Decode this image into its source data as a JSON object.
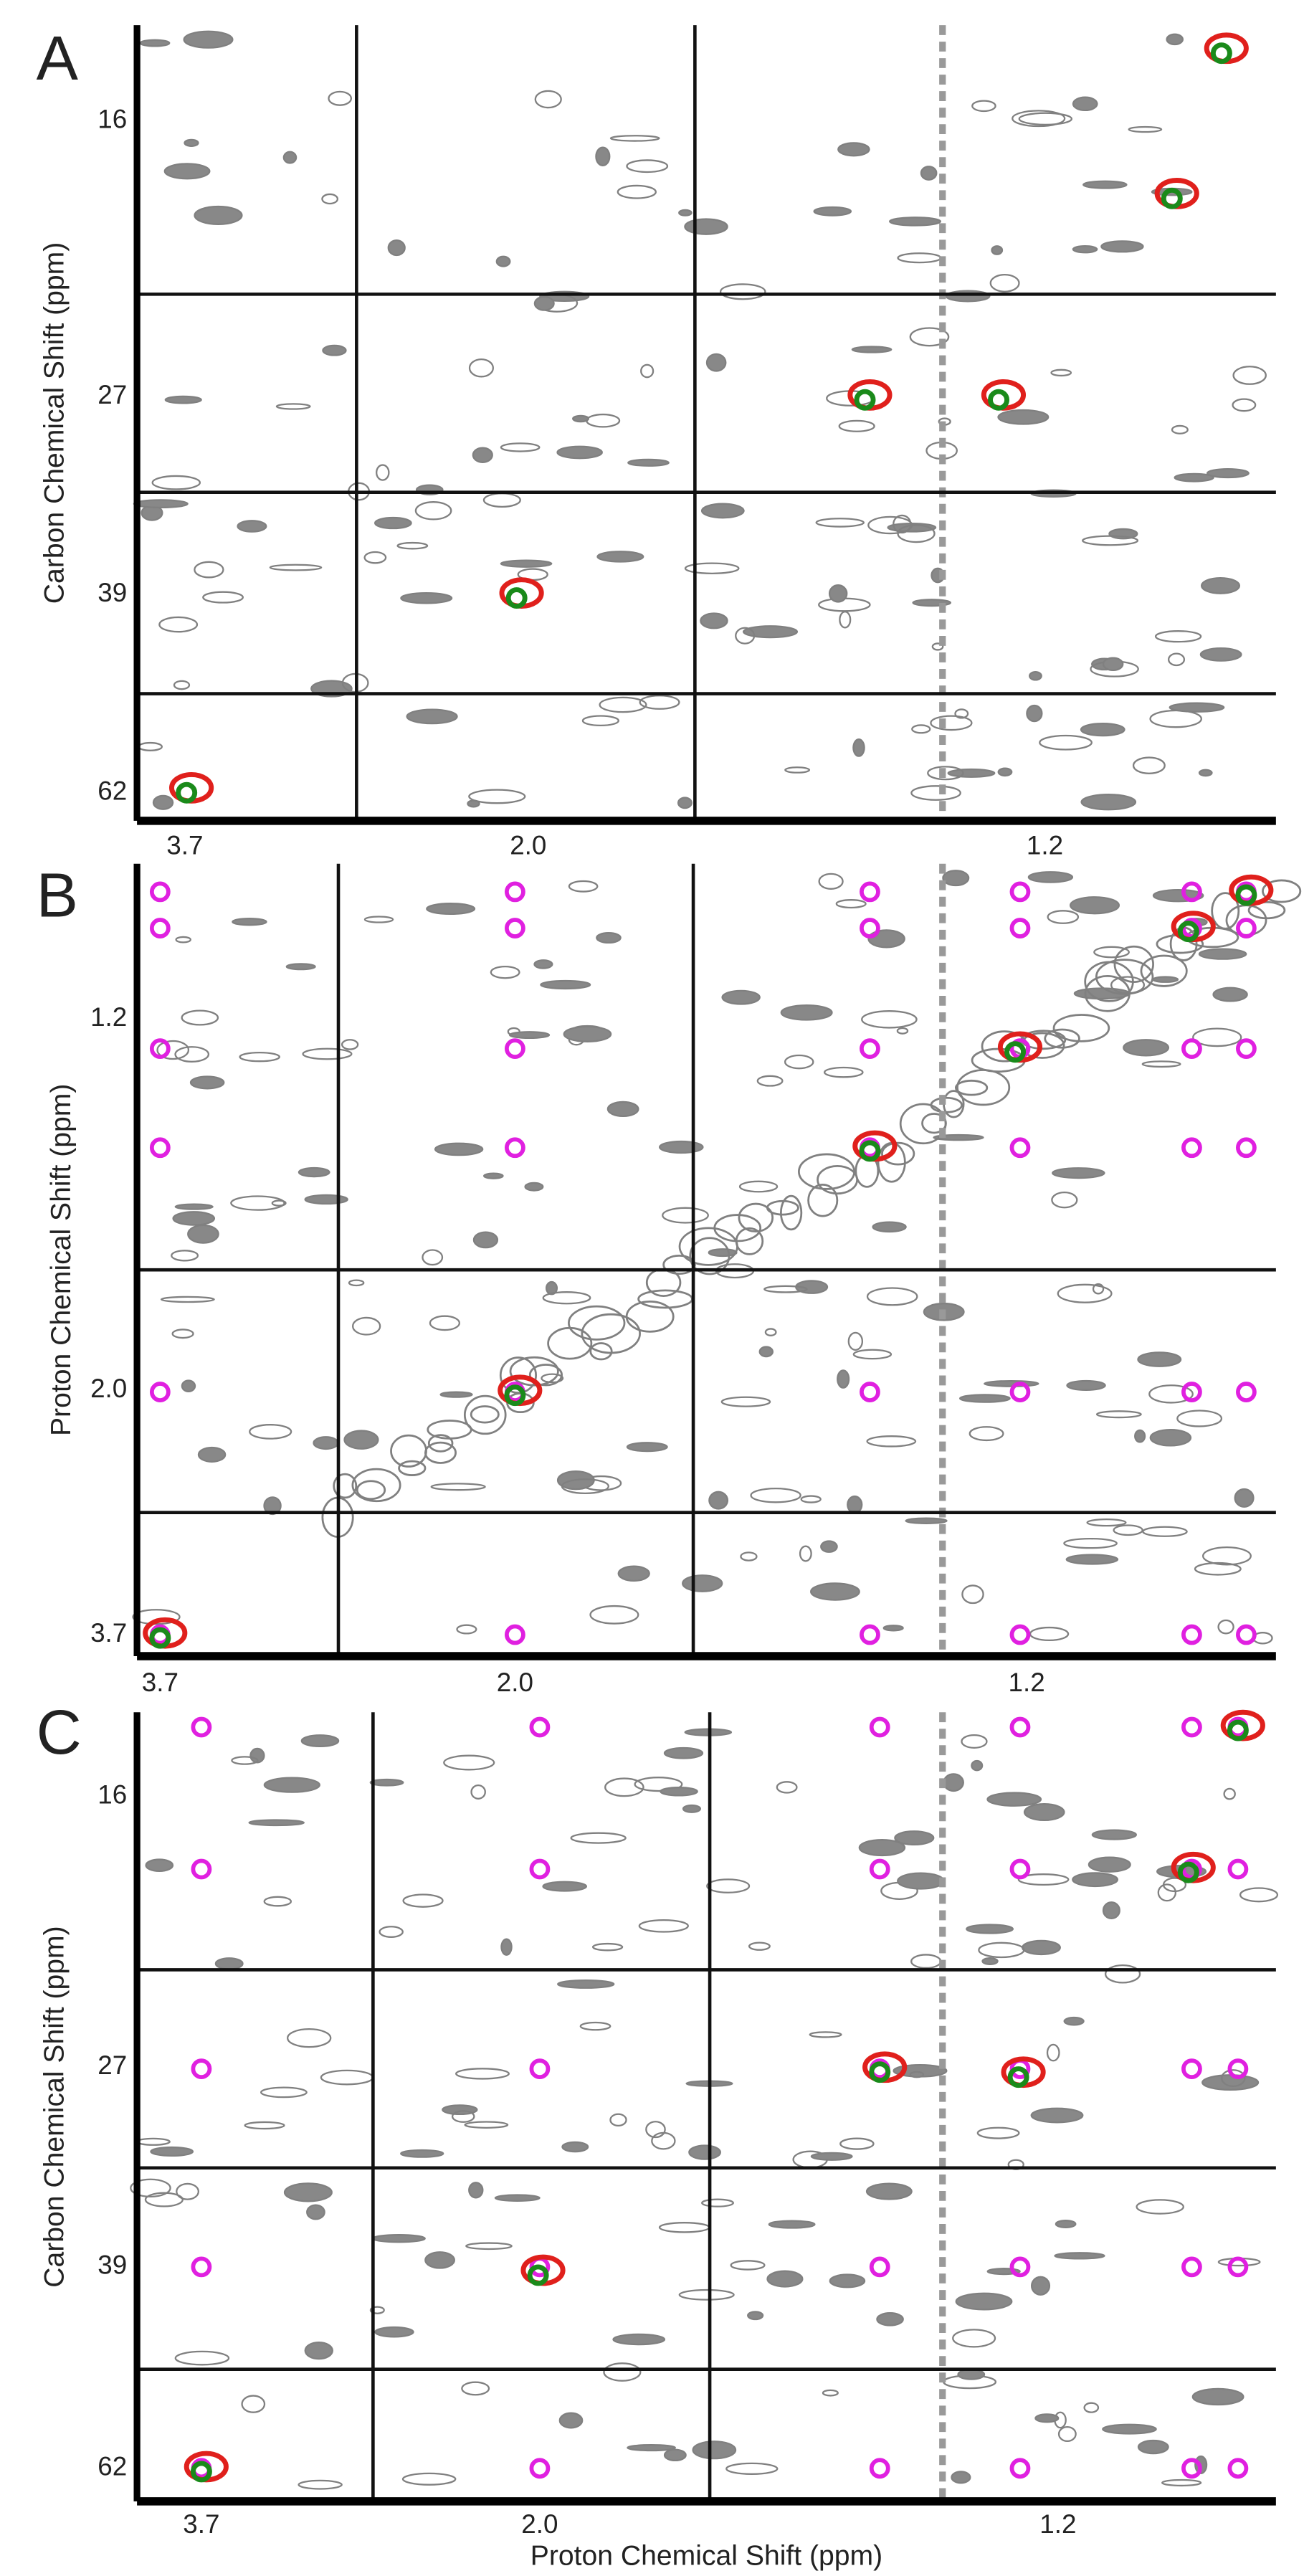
{
  "panels": [
    {
      "label": "A",
      "y_axis_label": "Carbon Chemical Shift (ppm)",
      "y_ticks": [
        "16",
        "27",
        "39",
        "62"
      ],
      "x_ticks": [
        "3.7",
        "2.0",
        "1.2"
      ]
    },
    {
      "label": "B",
      "y_axis_label": "Proton Chemical Shift (ppm)",
      "y_ticks": [
        "1.2",
        "2.0",
        "3.7"
      ],
      "x_ticks": [
        "3.7",
        "2.0",
        "1.2"
      ]
    },
    {
      "label": "C",
      "y_axis_label": "Carbon Chemical Shift (ppm)",
      "y_ticks": [
        "16",
        "27",
        "39",
        "62"
      ],
      "x_ticks": [
        "3.7",
        "2.0",
        "1.2"
      ],
      "x_axis_label": "Proton Chemical Shift (ppm)"
    }
  ]
}
